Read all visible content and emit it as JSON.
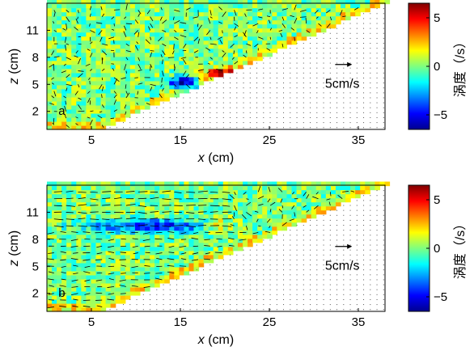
{
  "chart_data": [
    {
      "type": "heatmap",
      "panel_label": "a",
      "xlabel": "x (cm)",
      "ylabel": "z (cm)",
      "xticks": [
        "5",
        "15",
        "25",
        "35"
      ],
      "yticks": [
        "2",
        "5",
        "8",
        "11"
      ],
      "xlim": [
        0,
        38
      ],
      "ylim": [
        0,
        14
      ],
      "wedge_boundary": {
        "x": [
          6,
          38
        ],
        "z": [
          0,
          14
        ]
      },
      "scale_arrow_label": "5cm/s",
      "colorbar": {
        "label": "涡度（/s）",
        "ticks": [
          "5",
          "0",
          "−5"
        ],
        "range": [
          -6.5,
          6.5
        ],
        "colormap": "jet"
      },
      "features": [
        {
          "name": "negative vortex",
          "x": 15.5,
          "z": 5.2,
          "value": -6
        },
        {
          "name": "positive shear layer",
          "x": 19.5,
          "z": 6.3,
          "value": 4.5
        }
      ]
    },
    {
      "type": "heatmap",
      "panel_label": "b",
      "xlabel": "x (cm)",
      "ylabel": "z (cm)",
      "xticks": [
        "5",
        "15",
        "25",
        "35"
      ],
      "yticks": [
        "2",
        "5",
        "8",
        "11"
      ],
      "xlim": [
        0,
        38
      ],
      "ylim": [
        0,
        14
      ],
      "wedge_boundary": {
        "x": [
          6,
          38
        ],
        "z": [
          0,
          14
        ]
      },
      "scale_arrow_label": "5cm/s",
      "colorbar": {
        "label": "涡度（/s）",
        "ticks": [
          "5",
          "0",
          "−5"
        ],
        "range": [
          -6.5,
          6.5
        ],
        "colormap": "jet"
      },
      "features": [
        {
          "name": "negative shear band",
          "x": 12,
          "z": 9.5,
          "value": -5
        },
        {
          "name": "mixed vortex cluster",
          "x": 19.5,
          "z": 9.5,
          "value": 3
        }
      ]
    }
  ]
}
